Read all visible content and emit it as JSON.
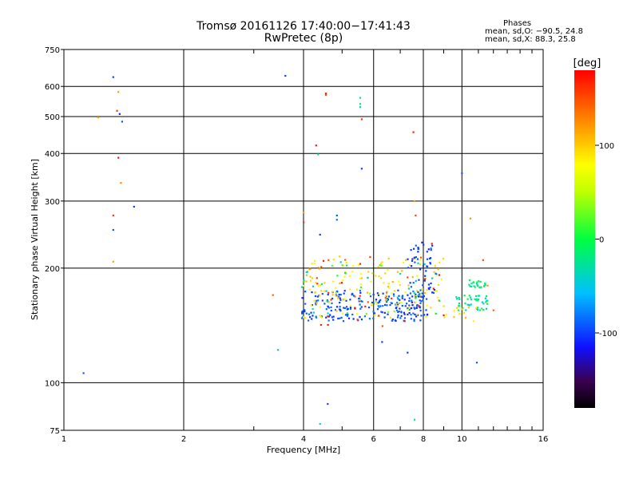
{
  "title": {
    "line1": "Tromsø 20161126 17:40:00−17:41:43",
    "line2": "RwPretec (8p)"
  },
  "stats": {
    "heading": "Phases",
    "o_line": "mean, sd,O: −90.5, 24.8",
    "x_line": "mean, sd,X:  88.3, 25.8"
  },
  "colorbar": {
    "unit_label": "[deg]",
    "range": [
      -180,
      180
    ],
    "ticks": [
      100,
      0,
      -100
    ]
  },
  "chart_data": {
    "type": "scatter",
    "xlabel": "Frequency [MHz]",
    "ylabel": "Stationary phase Virtual Height [km]",
    "xscale": "log",
    "yscale": "log",
    "xlim": [
      1,
      16
    ],
    "ylim": [
      75,
      750
    ],
    "xticks": [
      1,
      2,
      4,
      6,
      8,
      10,
      16
    ],
    "yticks": [
      750,
      600,
      500,
      400,
      300,
      200,
      100,
      75
    ],
    "grid": true,
    "points": [
      {
        "f": 1.12,
        "h": 106,
        "p": -90
      },
      {
        "f": 1.22,
        "h": 497,
        "p": 110
      },
      {
        "f": 1.33,
        "h": 635,
        "p": -100
      },
      {
        "f": 1.37,
        "h": 580,
        "p": 120
      },
      {
        "f": 1.36,
        "h": 518,
        "p": 160
      },
      {
        "f": 1.38,
        "h": 508,
        "p": -110
      },
      {
        "f": 1.4,
        "h": 485,
        "p": -95
      },
      {
        "f": 1.37,
        "h": 390,
        "p": 170
      },
      {
        "f": 1.39,
        "h": 335,
        "p": 125
      },
      {
        "f": 1.33,
        "h": 275,
        "p": 160
      },
      {
        "f": 1.33,
        "h": 252,
        "p": -95
      },
      {
        "f": 1.33,
        "h": 208,
        "p": 115
      },
      {
        "f": 1.5,
        "h": 290,
        "p": -100
      },
      {
        "f": 3.35,
        "h": 170,
        "p": 140
      },
      {
        "f": 3.45,
        "h": 122,
        "p": -60
      },
      {
        "f": 3.6,
        "h": 640,
        "p": -100
      },
      {
        "f": 4.0,
        "h": 264,
        "p": 160
      },
      {
        "f": 4.0,
        "h": 280,
        "p": 120
      },
      {
        "f": 4.3,
        "h": 420,
        "p": 170
      },
      {
        "f": 4.35,
        "h": 398,
        "p": -20
      },
      {
        "f": 4.4,
        "h": 245,
        "p": -100
      },
      {
        "f": 4.4,
        "h": 78,
        "p": -40
      },
      {
        "f": 4.55,
        "h": 575,
        "p": 170
      },
      {
        "f": 4.55,
        "h": 570,
        "p": 150
      },
      {
        "f": 4.6,
        "h": 88,
        "p": -95
      },
      {
        "f": 4.85,
        "h": 275,
        "p": -90
      },
      {
        "f": 4.85,
        "h": 268,
        "p": -85
      },
      {
        "f": 5.55,
        "h": 560,
        "p": -30
      },
      {
        "f": 5.55,
        "h": 540,
        "p": -10
      },
      {
        "f": 5.55,
        "h": 530,
        "p": -40
      },
      {
        "f": 5.6,
        "h": 492,
        "p": 160
      },
      {
        "f": 5.6,
        "h": 365,
        "p": -100
      },
      {
        "f": 6.3,
        "h": 128,
        "p": -100
      },
      {
        "f": 7.3,
        "h": 120,
        "p": -100
      },
      {
        "f": 7.55,
        "h": 455,
        "p": 170
      },
      {
        "f": 7.6,
        "h": 300,
        "p": 120
      },
      {
        "f": 7.6,
        "h": 80,
        "p": -20
      },
      {
        "f": 7.65,
        "h": 275,
        "p": 150
      },
      {
        "f": 8.4,
        "h": 232,
        "p": 160
      },
      {
        "f": 10.0,
        "h": 355,
        "p": -90
      },
      {
        "f": 10.5,
        "h": 270,
        "p": 120
      },
      {
        "f": 10.9,
        "h": 113,
        "p": -90
      },
      {
        "f": 11.3,
        "h": 210,
        "p": 150
      },
      {
        "f": 11.6,
        "h": 180,
        "p": 120
      },
      {
        "f": 12.0,
        "h": 155,
        "p": 140
      }
    ],
    "clusters": [
      {
        "f_range": [
          3.95,
          8.0
        ],
        "h_range": [
          145,
          175
        ],
        "p_range": [
          -110,
          -80
        ],
        "count": 230
      },
      {
        "f_range": [
          4.0,
          9.2
        ],
        "h_range": [
          148,
          215
        ],
        "p_range": [
          70,
          110
        ],
        "count": 140
      },
      {
        "f_range": [
          3.95,
          9.0
        ],
        "h_range": [
          150,
          210
        ],
        "p_range": [
          -60,
          40
        ],
        "count": 50
      },
      {
        "f_range": [
          3.95,
          9.0
        ],
        "h_range": [
          140,
          215
        ],
        "p_range": [
          140,
          175
        ],
        "count": 35
      },
      {
        "f_range": [
          7.3,
          8.6
        ],
        "h_range": [
          150,
          235
        ],
        "p_range": [
          -110,
          -85
        ],
        "count": 70
      },
      {
        "f_range": [
          9.6,
          11.6
        ],
        "h_range": [
          155,
          170
        ],
        "p_range": [
          -50,
          10
        ],
        "count": 45
      },
      {
        "f_range": [
          10.4,
          11.5
        ],
        "h_range": [
          178,
          186
        ],
        "p_range": [
          -40,
          10
        ],
        "count": 22
      },
      {
        "f_range": [
          9.0,
          11.0
        ],
        "h_range": [
          145,
          158
        ],
        "p_range": [
          80,
          110
        ],
        "count": 12
      }
    ]
  }
}
